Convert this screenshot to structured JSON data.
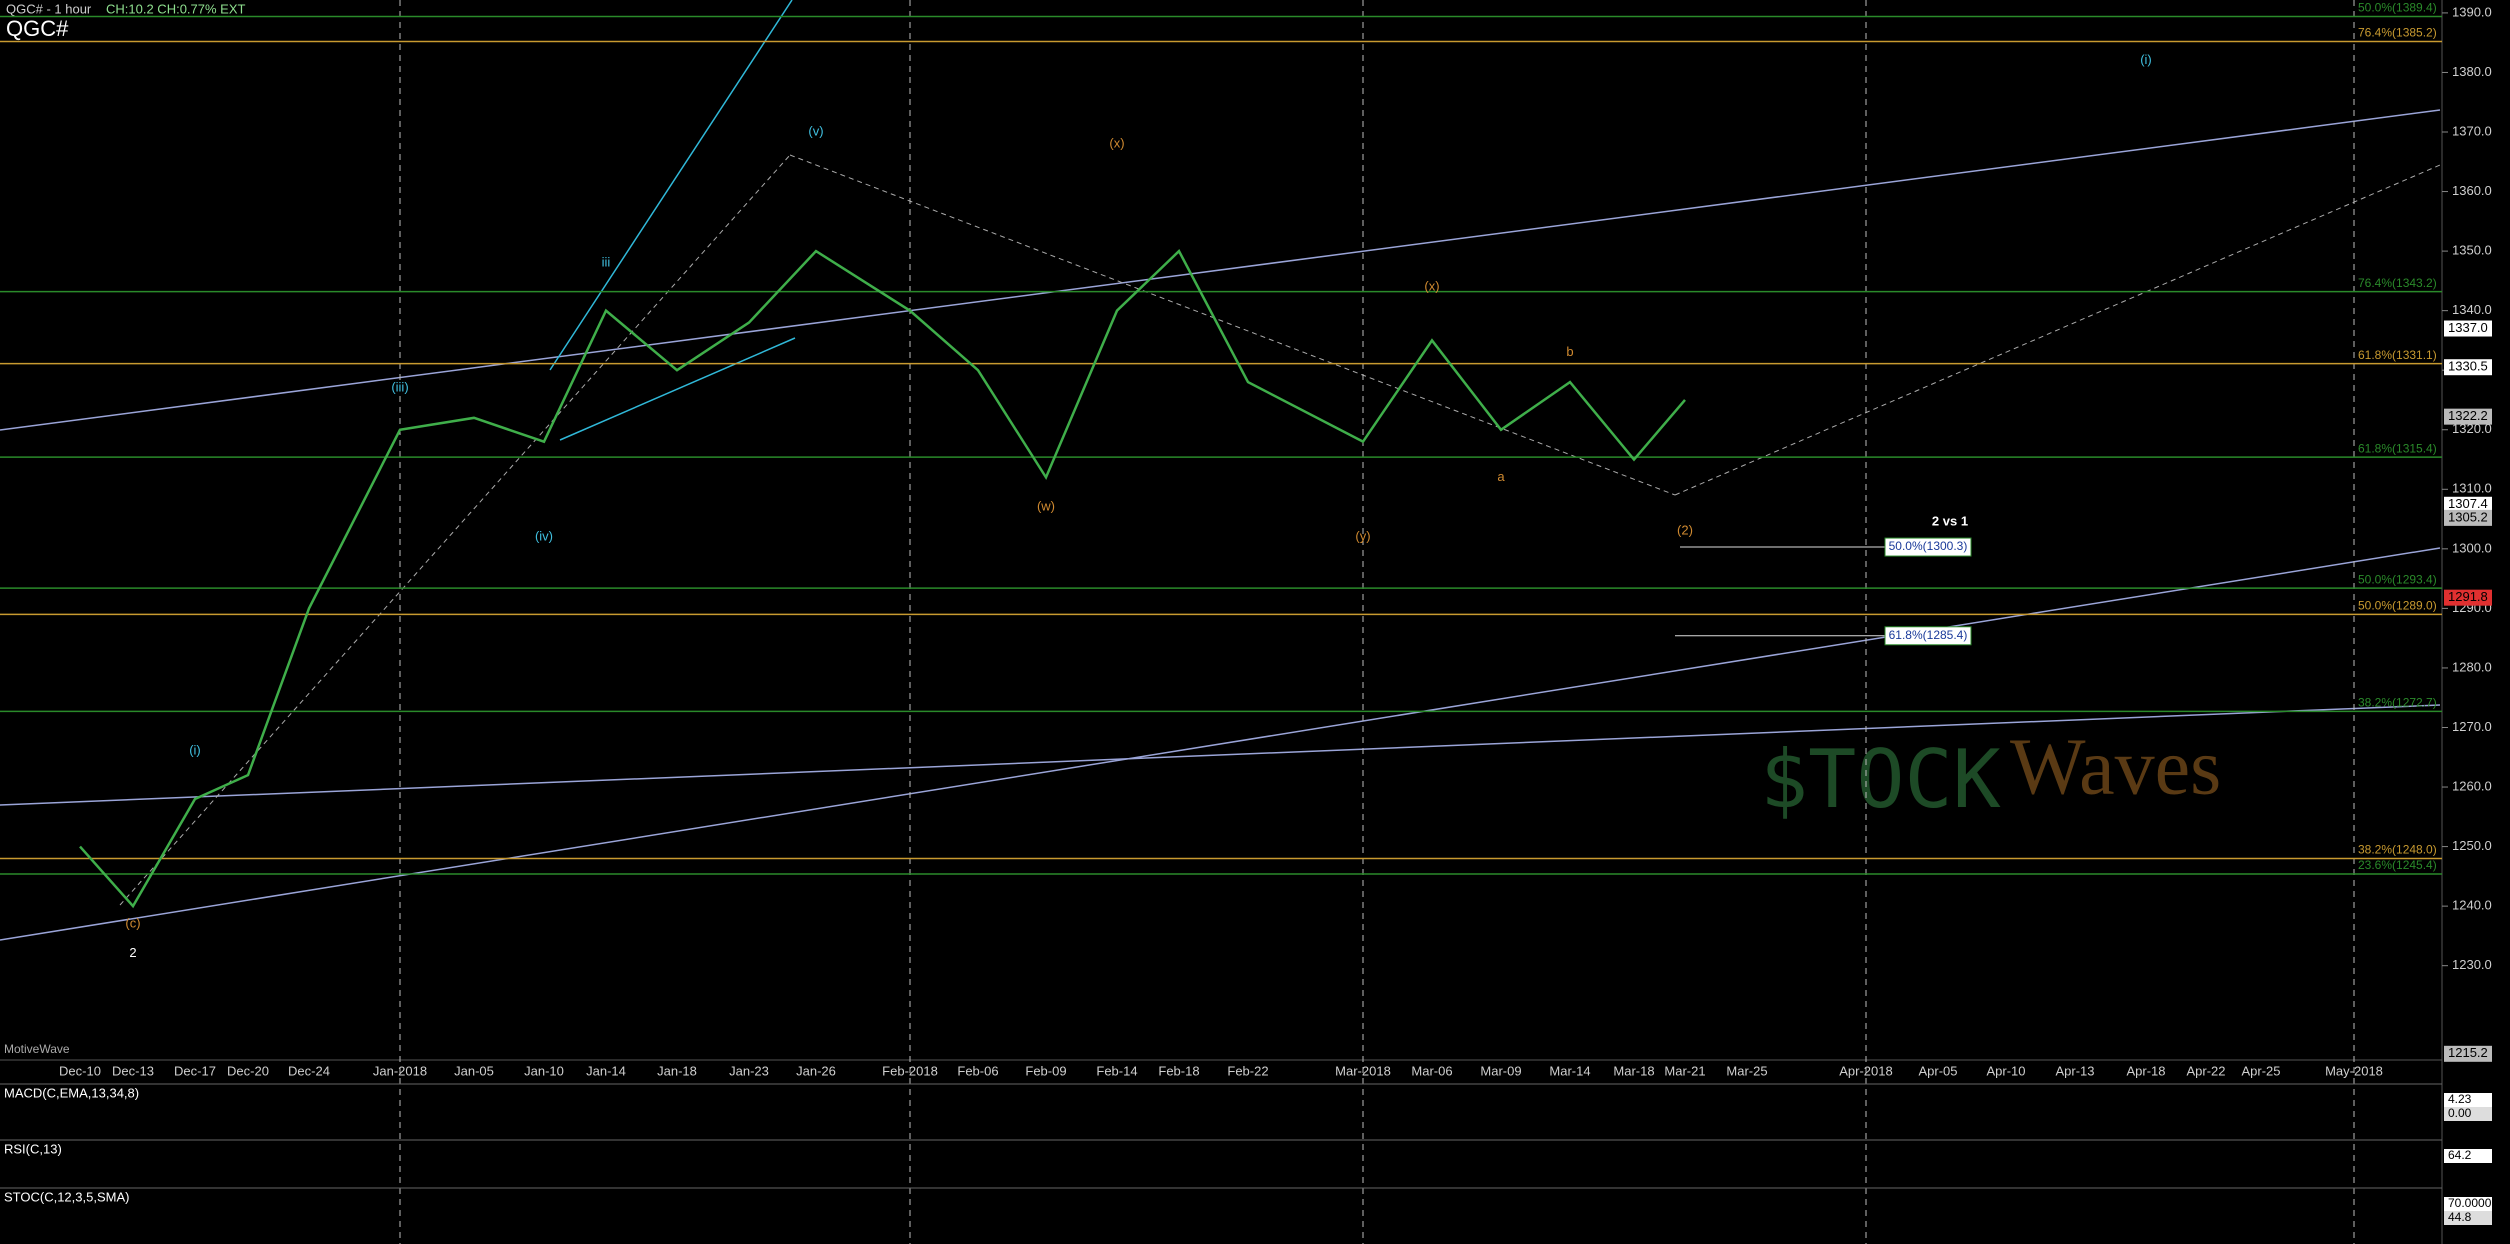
{
  "chart_data": {
    "type": "line",
    "title": "QGC# - 1 hour",
    "subtitle": "CH:10.2 CH:0.77% EXT",
    "symbol": "QGC#",
    "footer": "MotiveWave",
    "watermark": [
      "$TOCK",
      "Waves"
    ],
    "categories": [
      "Dec-10",
      "Dec-13",
      "Dec-17",
      "Dec-20",
      "Dec-24",
      "Jan-2018",
      "Jan-05",
      "Jan-10",
      "Jan-14",
      "Jan-18",
      "Jan-23",
      "Jan-26",
      "Feb-2018",
      "Feb-06",
      "Feb-09",
      "Feb-14",
      "Feb-18",
      "Feb-22",
      "Mar-2018",
      "Mar-06",
      "Mar-09",
      "Mar-14",
      "Mar-18",
      "Mar-21",
      "Mar-25",
      "Apr-2018",
      "Apr-05",
      "Apr-10",
      "Apr-13",
      "Apr-18",
      "Apr-22",
      "Apr-25",
      "May-2018"
    ],
    "series": [
      {
        "name": "QGC#",
        "color": "#3fae4a",
        "values": [
          1250,
          1240,
          1258,
          1262,
          1290,
          1320,
          1322,
          1318,
          1340,
          1330,
          1338,
          1350,
          1340,
          1330,
          1312,
          1340,
          1350,
          1328,
          1318,
          1335,
          1320,
          1328,
          1315,
          1325,
          null,
          null,
          null,
          null,
          null,
          null,
          null,
          null,
          null
        ]
      }
    ],
    "ylim": [
      1215,
      1392
    ],
    "yticks": [
      {
        "value": 1390,
        "label": "1390.0"
      },
      {
        "value": 1380,
        "label": "1380.0"
      },
      {
        "value": 1370,
        "label": "1370.0"
      },
      {
        "value": 1360,
        "label": "1360.0"
      },
      {
        "value": 1350,
        "label": "1350.0"
      },
      {
        "value": 1340,
        "label": "1340.0"
      },
      {
        "value": 1330,
        "label": "1330.0"
      },
      {
        "value": 1320,
        "label": "1320.0"
      },
      {
        "value": 1310,
        "label": "1310.0"
      },
      {
        "value": 1300,
        "label": "1300.0"
      },
      {
        "value": 1290,
        "label": "1290.0"
      },
      {
        "value": 1280,
        "label": "1280.0"
      },
      {
        "value": 1270,
        "label": "1270.0"
      },
      {
        "value": 1260,
        "label": "1260.0"
      },
      {
        "value": 1250,
        "label": "1250.0"
      },
      {
        "value": 1240,
        "label": "1240.0"
      },
      {
        "value": 1230,
        "label": "1230.0"
      }
    ],
    "fib_levels": [
      {
        "label": "50.0%(1389.4)",
        "value": 1389.4,
        "color": "#2a8a2a"
      },
      {
        "label": "76.4%(1385.2)",
        "value": 1385.2,
        "color": "#c89a30"
      },
      {
        "label": "76.4%(1343.2)",
        "value": 1343.2,
        "color": "#2a8a2a"
      },
      {
        "label": "61.8%(1331.1)",
        "value": 1331.1,
        "color": "#c89a30"
      },
      {
        "label": "61.8%(1315.4)",
        "value": 1315.4,
        "color": "#2a8a2a"
      },
      {
        "label": "50.0%(1293.4)",
        "value": 1293.4,
        "color": "#2a8a2a"
      },
      {
        "label": "50.0%(1289.0)",
        "value": 1289.0,
        "color": "#c89a30"
      },
      {
        "label": "38.2%(1272.7)",
        "value": 1272.7,
        "color": "#2a8a2a"
      },
      {
        "label": "38.2%(1248.0)",
        "value": 1248.0,
        "color": "#c89a30"
      },
      {
        "label": "23.6%(1245.4)",
        "value": 1245.4,
        "color": "#2a8a2a"
      }
    ],
    "callouts": [
      {
        "label": "50.0%(1300.3)",
        "value": 1300.3
      },
      {
        "label": "61.8%(1285.4)",
        "value": 1285.4
      }
    ],
    "callout_title": "2 vs 1",
    "price_markers": [
      {
        "value": 1337,
        "label": "1337.0"
      },
      1330.5,
      1322.2,
      1307.4,
      1305.2,
      1291.8,
      1215.2
    ],
    "wave_labels": [
      {
        "text": "(c)",
        "x": "Dec-13",
        "y": 1237,
        "color": "#d08a30"
      },
      {
        "text": "2",
        "x": "Dec-13",
        "y": 1232,
        "color": "#ffffff"
      },
      {
        "text": "(i)",
        "x": "Dec-17",
        "y": 1266,
        "color": "#40c0e0"
      },
      {
        "text": "(iii)",
        "x": "Jan-2018",
        "y": 1327,
        "color": "#40c0e0"
      },
      {
        "text": "(iv)",
        "x": "Jan-10",
        "y": 1302,
        "color": "#40c0e0"
      },
      {
        "text": "iii",
        "x": "Jan-14",
        "y": 1348,
        "color": "#40c0e0"
      },
      {
        "text": "(v)",
        "x": "Jan-26",
        "y": 1370,
        "color": "#40c0e0"
      },
      {
        "text": "(w)",
        "x": "Feb-09",
        "y": 1307,
        "color": "#d08a30"
      },
      {
        "text": "(x)",
        "x": "Feb-14",
        "y": 1368,
        "color": "#d08a30"
      },
      {
        "text": "(y)",
        "x": "Mar-2018",
        "y": 1302,
        "color": "#d08a30"
      },
      {
        "text": "(x)",
        "x": "Mar-06",
        "y": 1344,
        "color": "#d08a30"
      },
      {
        "text": "a",
        "x": "Mar-09",
        "y": 1312,
        "color": "#d08a30"
      },
      {
        "text": "b",
        "x": "Mar-14",
        "y": 1333,
        "color": "#d08a30"
      },
      {
        "text": "(2)",
        "x": "Mar-21",
        "y": 1303,
        "color": "#d08a30"
      },
      {
        "text": "(i)",
        "x": "Apr-18",
        "y": 1382,
        "color": "#40c0e0"
      }
    ],
    "indicators": [
      {
        "name": "MACD(C,EMA,13,34,8)",
        "labels": [
          4.23,
          {
            "value": 0,
            "label": "0.00"
          }
        ]
      },
      {
        "name": "RSI(C,13)",
        "labels": [
          64.2
        ]
      },
      {
        "name": "STOC(C,12,3,5,SMA)",
        "labels": [
          {
            "value": 70,
            "label": "70.0000"
          },
          44.8
        ]
      }
    ]
  }
}
